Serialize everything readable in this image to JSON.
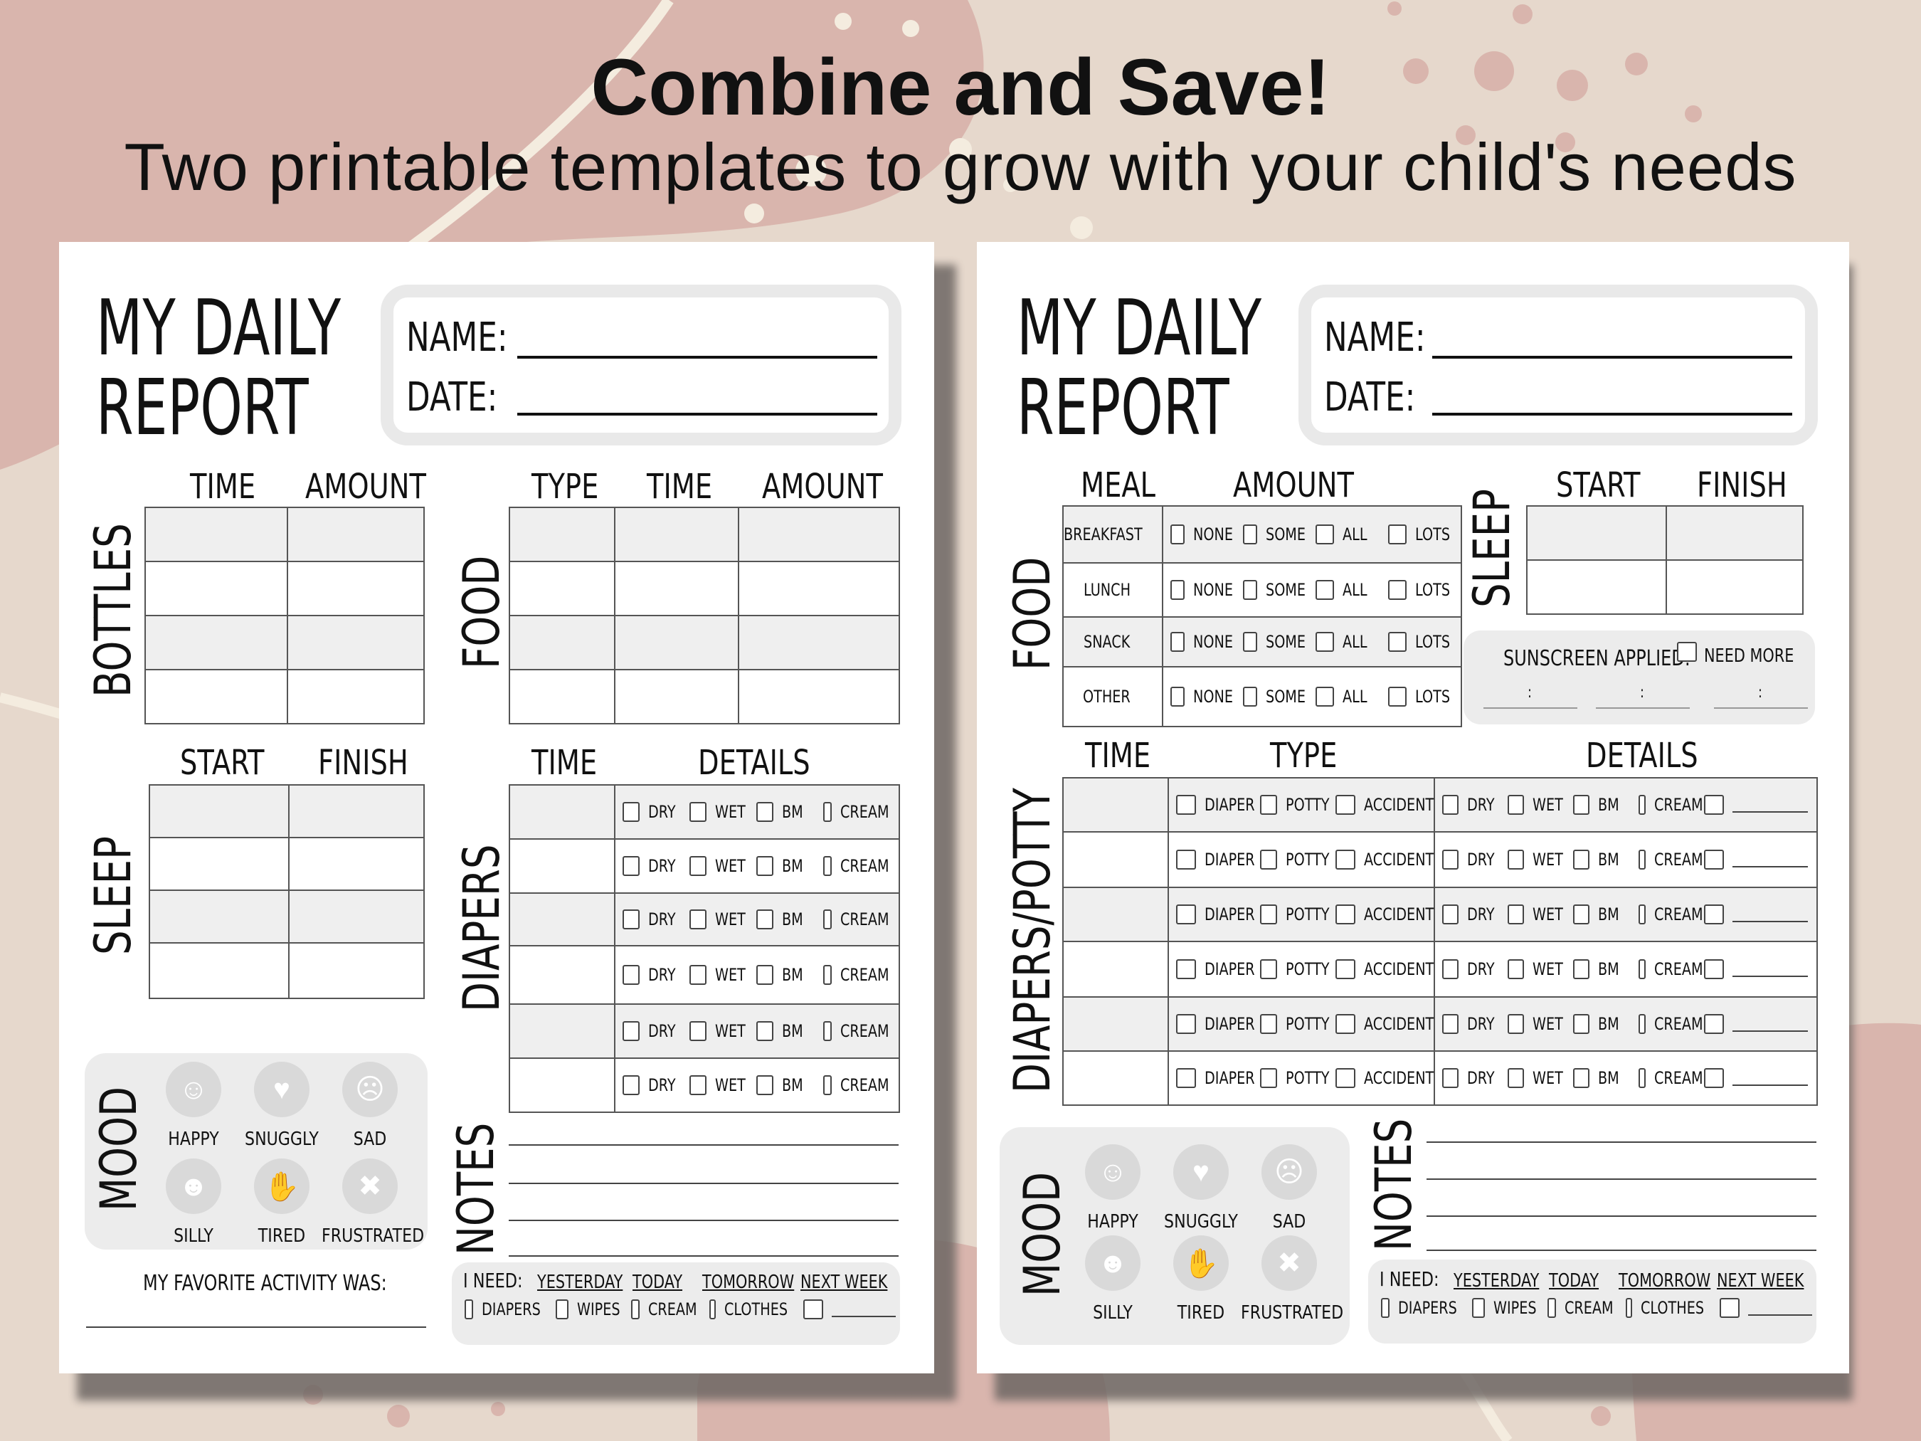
{
  "colors": {
    "background": "#e6d8cc",
    "blob": "#d9b5ad",
    "dot": "#f4ecdf",
    "panel": "#ececec"
  },
  "header": {
    "title": "Combine and Save!",
    "subtitle": "Two printable templates to grow with your child's needs"
  },
  "common": {
    "title_line1": "MY DAILY",
    "title_line2": "REPORT",
    "name_label": "NAME:",
    "date_label": "DATE:"
  },
  "left": {
    "bottles": {
      "label": "BOTTLES",
      "col1": "TIME",
      "col2": "AMOUNT"
    },
    "food": {
      "label": "FOOD",
      "col1": "TYPE",
      "col2": "TIME",
      "col3": "AMOUNT"
    },
    "sleep": {
      "label": "SLEEP",
      "col1": "START",
      "col2": "FINISH"
    },
    "diapers": {
      "label": "DIAPERS",
      "col1": "TIME",
      "col2": "DETAILS",
      "options": [
        "DRY",
        "WET",
        "BM",
        "CREAM"
      ]
    },
    "mood": {
      "label": "MOOD",
      "items": [
        "HAPPY",
        "SNUGGLY",
        "SAD",
        "SILLY",
        "TIRED",
        "FRUSTRATED"
      ],
      "icons": [
        "happy-face-icon",
        "heart-eyes-icon",
        "sad-face-icon",
        "silly-face-icon",
        "tired-face-icon",
        "frustrated-face-icon"
      ]
    },
    "favorite": "MY FAVORITE ACTIVITY WAS:",
    "notes": "NOTES",
    "need": {
      "label": "I NEED:",
      "when": [
        "YESTERDAY",
        "TODAY",
        "TOMORROW",
        "NEXT WEEK"
      ],
      "items": [
        "DIAPERS",
        "WIPES",
        "CREAM",
        "CLOTHES"
      ]
    }
  },
  "right": {
    "food": {
      "label": "FOOD",
      "col1": "MEAL",
      "col2": "AMOUNT",
      "meals": [
        "BREAKFAST",
        "LUNCH",
        "SNACK",
        "OTHER"
      ],
      "options": [
        "NONE",
        "SOME",
        "ALL",
        "LOTS"
      ]
    },
    "sleep": {
      "label": "SLEEP",
      "col1": "START",
      "col2": "FINISH"
    },
    "sunscreen": {
      "label": "SUNSCREEN APPLIED:",
      "option": "NEED MORE",
      "colon": ":"
    },
    "diapers": {
      "label": "DIAPERS/POTTY",
      "col1": "TIME",
      "col2": "TYPE",
      "col3": "DETAILS",
      "types": [
        "DIAPER",
        "POTTY",
        "ACCIDENT"
      ],
      "details": [
        "DRY",
        "WET",
        "BM",
        "CREAM"
      ]
    },
    "mood": {
      "label": "MOOD",
      "items": [
        "HAPPY",
        "SNUGGLY",
        "SAD",
        "SILLY",
        "TIRED",
        "FRUSTRATED"
      ]
    },
    "notes": "NOTES",
    "need": {
      "label": "I NEED:",
      "when": [
        "YESTERDAY",
        "TODAY",
        "TOMORROW",
        "NEXT WEEK"
      ],
      "items": [
        "DIAPERS",
        "WIPES",
        "CREAM",
        "CLOTHES"
      ]
    }
  }
}
